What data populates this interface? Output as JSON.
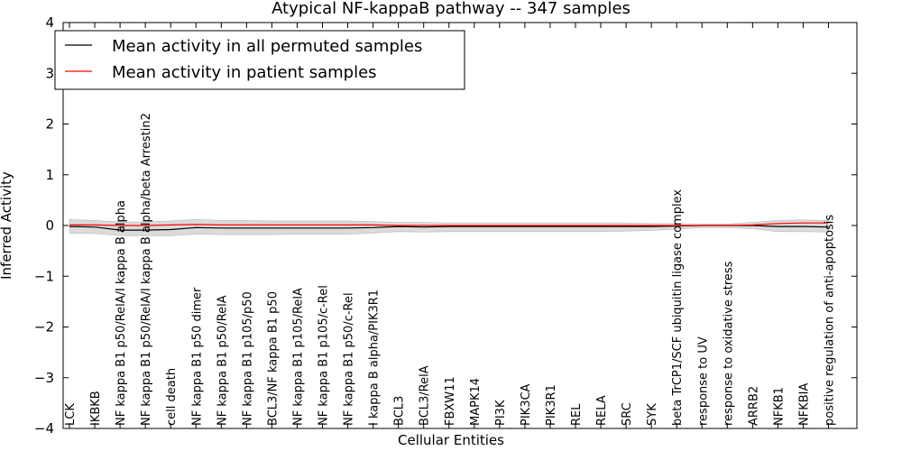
{
  "chart_data": {
    "type": "line",
    "title": "Atypical NF-kappaB pathway -- 347 samples",
    "xlabel": "Cellular Entities",
    "ylabel": "Inferred Activity",
    "ylim": [
      -4,
      4
    ],
    "yticks": [
      4,
      3,
      2,
      1,
      0,
      -1,
      -2,
      -3,
      -4
    ],
    "ytick_labels": [
      "4",
      "3",
      "2",
      "1",
      "0",
      "−1",
      "−2",
      "−3",
      "−4"
    ],
    "grid": false,
    "legend": {
      "position": "top-left",
      "entries": [
        {
          "label": "Mean activity in all permuted samples",
          "color": "#000000"
        },
        {
          "label": "Mean activity in patient samples",
          "color": "#ff0000"
        }
      ]
    },
    "categories": [
      "LCK",
      "IKBKB",
      "NF kappa B1 p50/RelA/I kappa B alpha",
      "NF kappa B1 p50/RelA/I kappa B alpha/beta Arrestin2",
      "cell death",
      "NF kappa B1 p50 dimer",
      "NF kappa B1 p50/RelA",
      "NF kappa B1 p105/p50",
      "BCL3/NF kappa B1 p50",
      "NF kappa B1 p105/RelA",
      "NF kappa B1 p105/c-Rel",
      "NF kappa B1 p50/c-Rel",
      "I kappa B alpha/PIK3R1",
      "BCL3",
      "BCL3/RelA",
      "FBXW11",
      "MAPK14",
      "PI3K",
      "PIK3CA",
      "PIK3R1",
      "REL",
      "RELA",
      "SRC",
      "SYK",
      "beta TrCP1/SCF ubiquitin ligase complex",
      "response to UV",
      "response to oxidative stress",
      "ARRB2",
      "NFKB1",
      "NFKBIA",
      "positive regulation of anti-apoptosis"
    ],
    "series": [
      {
        "name": "Mean activity in all permuted samples",
        "color": "#000000",
        "values": [
          -0.02,
          -0.03,
          -0.09,
          -0.09,
          -0.08,
          -0.04,
          -0.05,
          -0.05,
          -0.05,
          -0.05,
          -0.05,
          -0.05,
          -0.04,
          -0.02,
          -0.03,
          -0.02,
          -0.02,
          -0.02,
          -0.02,
          -0.02,
          -0.02,
          -0.02,
          -0.02,
          -0.02,
          -0.01,
          0.0,
          0.0,
          0.0,
          -0.02,
          -0.02,
          -0.03
        ]
      },
      {
        "name": "Mean activity in patient samples",
        "color": "#ff0000",
        "values": [
          0.01,
          0.01,
          0.0,
          0.0,
          0.01,
          0.02,
          0.01,
          0.01,
          0.01,
          0.01,
          0.01,
          0.01,
          0.01,
          0.0,
          0.0,
          0.0,
          0.0,
          0.0,
          0.0,
          0.0,
          0.0,
          0.0,
          0.0,
          0.0,
          0.0,
          0.0,
          0.0,
          0.01,
          0.04,
          0.05,
          0.05
        ]
      }
    ],
    "bands": [
      {
        "name": "permuted spread",
        "color": "#cccccc",
        "upper": [
          0.12,
          0.1,
          0.07,
          0.07,
          0.09,
          0.12,
          0.1,
          0.1,
          0.09,
          0.09,
          0.09,
          0.09,
          0.08,
          0.06,
          0.06,
          0.05,
          0.05,
          0.05,
          0.05,
          0.05,
          0.05,
          0.05,
          0.05,
          0.04,
          0.04,
          0.03,
          0.03,
          0.06,
          0.1,
          0.11,
          0.1
        ],
        "lower": [
          -0.15,
          -0.16,
          -0.2,
          -0.2,
          -0.2,
          -0.17,
          -0.18,
          -0.18,
          -0.18,
          -0.17,
          -0.17,
          -0.17,
          -0.15,
          -0.12,
          -0.13,
          -0.12,
          -0.12,
          -0.12,
          -0.12,
          -0.12,
          -0.12,
          -0.12,
          -0.11,
          -0.1,
          -0.07,
          -0.04,
          -0.04,
          -0.06,
          -0.12,
          -0.12,
          -0.13
        ]
      }
    ]
  }
}
